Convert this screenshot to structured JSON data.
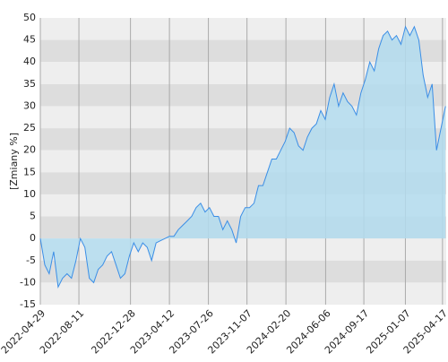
{
  "chart_data": {
    "type": "area",
    "y_label": "[Zmiany %]",
    "x": [
      "2022-04-29",
      "2022-05-11",
      "2022-05-23",
      "2022-06-04",
      "2022-06-16",
      "2022-06-28",
      "2022-07-10",
      "2022-07-22",
      "2022-08-03",
      "2022-08-15",
      "2022-08-27",
      "2022-09-08",
      "2022-09-20",
      "2022-10-02",
      "2022-10-14",
      "2022-10-26",
      "2022-11-07",
      "2022-11-19",
      "2022-12-01",
      "2022-12-13",
      "2022-12-25",
      "2023-01-06",
      "2023-01-18",
      "2023-01-30",
      "2023-02-11",
      "2023-02-23",
      "2023-03-07",
      "2023-03-19",
      "2023-03-31",
      "2023-04-12",
      "2023-04-24",
      "2023-05-06",
      "2023-05-18",
      "2023-05-30",
      "2023-06-11",
      "2023-06-23",
      "2023-07-05",
      "2023-07-17",
      "2023-07-29",
      "2023-08-10",
      "2023-08-22",
      "2023-09-03",
      "2023-09-15",
      "2023-09-27",
      "2023-10-09",
      "2023-10-21",
      "2023-11-02",
      "2023-11-14",
      "2023-11-26",
      "2023-12-08",
      "2023-12-20",
      "2024-01-01",
      "2024-01-13",
      "2024-01-25",
      "2024-02-06",
      "2024-02-18",
      "2024-03-01",
      "2024-03-13",
      "2024-03-25",
      "2024-04-06",
      "2024-04-18",
      "2024-04-30",
      "2024-05-12",
      "2024-05-24",
      "2024-06-05",
      "2024-06-17",
      "2024-06-29",
      "2024-07-11",
      "2024-07-23",
      "2024-08-04",
      "2024-08-16",
      "2024-08-28",
      "2024-09-09",
      "2024-09-21",
      "2024-10-03",
      "2024-10-15",
      "2024-10-27",
      "2024-11-08",
      "2024-11-20",
      "2024-12-02",
      "2024-12-14",
      "2024-12-26",
      "2025-01-07",
      "2025-01-19",
      "2025-01-31",
      "2025-02-12",
      "2025-02-24",
      "2025-03-08",
      "2025-03-20",
      "2025-04-01",
      "2025-04-13",
      "2025-04-25"
    ],
    "values": [
      0,
      -6,
      -8,
      -3,
      -11,
      -9,
      -8,
      -9,
      -5,
      0,
      -2,
      -9,
      -10,
      -7,
      -6,
      -4,
      -3,
      -6,
      -9,
      -8,
      -4,
      -1,
      -3,
      -1,
      -2,
      -5,
      -1,
      -0.5,
      0,
      0.5,
      0.5,
      2,
      3,
      4,
      5,
      7,
      8,
      6,
      7,
      5,
      5,
      2,
      4,
      2,
      -1,
      5,
      7,
      7,
      8,
      12,
      12,
      15,
      18,
      18,
      20,
      22,
      25,
      24,
      21,
      20,
      23,
      25,
      26,
      29,
      27,
      32,
      35,
      30,
      33,
      31,
      30,
      28,
      33,
      36,
      40,
      38,
      43,
      46,
      47,
      45,
      46,
      44,
      48,
      46,
      48,
      45,
      37,
      32,
      35,
      20,
      25,
      30
    ],
    "color": "#3b8ee6",
    "fill_color": "#b3dcee",
    "xlim": [
      "2022-04-29",
      "2025-04-27"
    ],
    "xticks": [
      "2022-04-29",
      "2022-08-11",
      "2022-12-28",
      "2023-04-12",
      "2023-07-26",
      "2023-11-07",
      "2024-02-20",
      "2024-06-06",
      "2024-09-17",
      "2025-01-07",
      "2025-04-17"
    ],
    "ylim": [
      -15,
      50
    ],
    "yticks": [
      -15,
      -10,
      -5,
      0,
      5,
      10,
      15,
      20,
      25,
      30,
      35,
      40,
      45,
      50
    ],
    "band_colors": [
      "#eeeeee",
      "#dddddd"
    ],
    "grid": true
  }
}
